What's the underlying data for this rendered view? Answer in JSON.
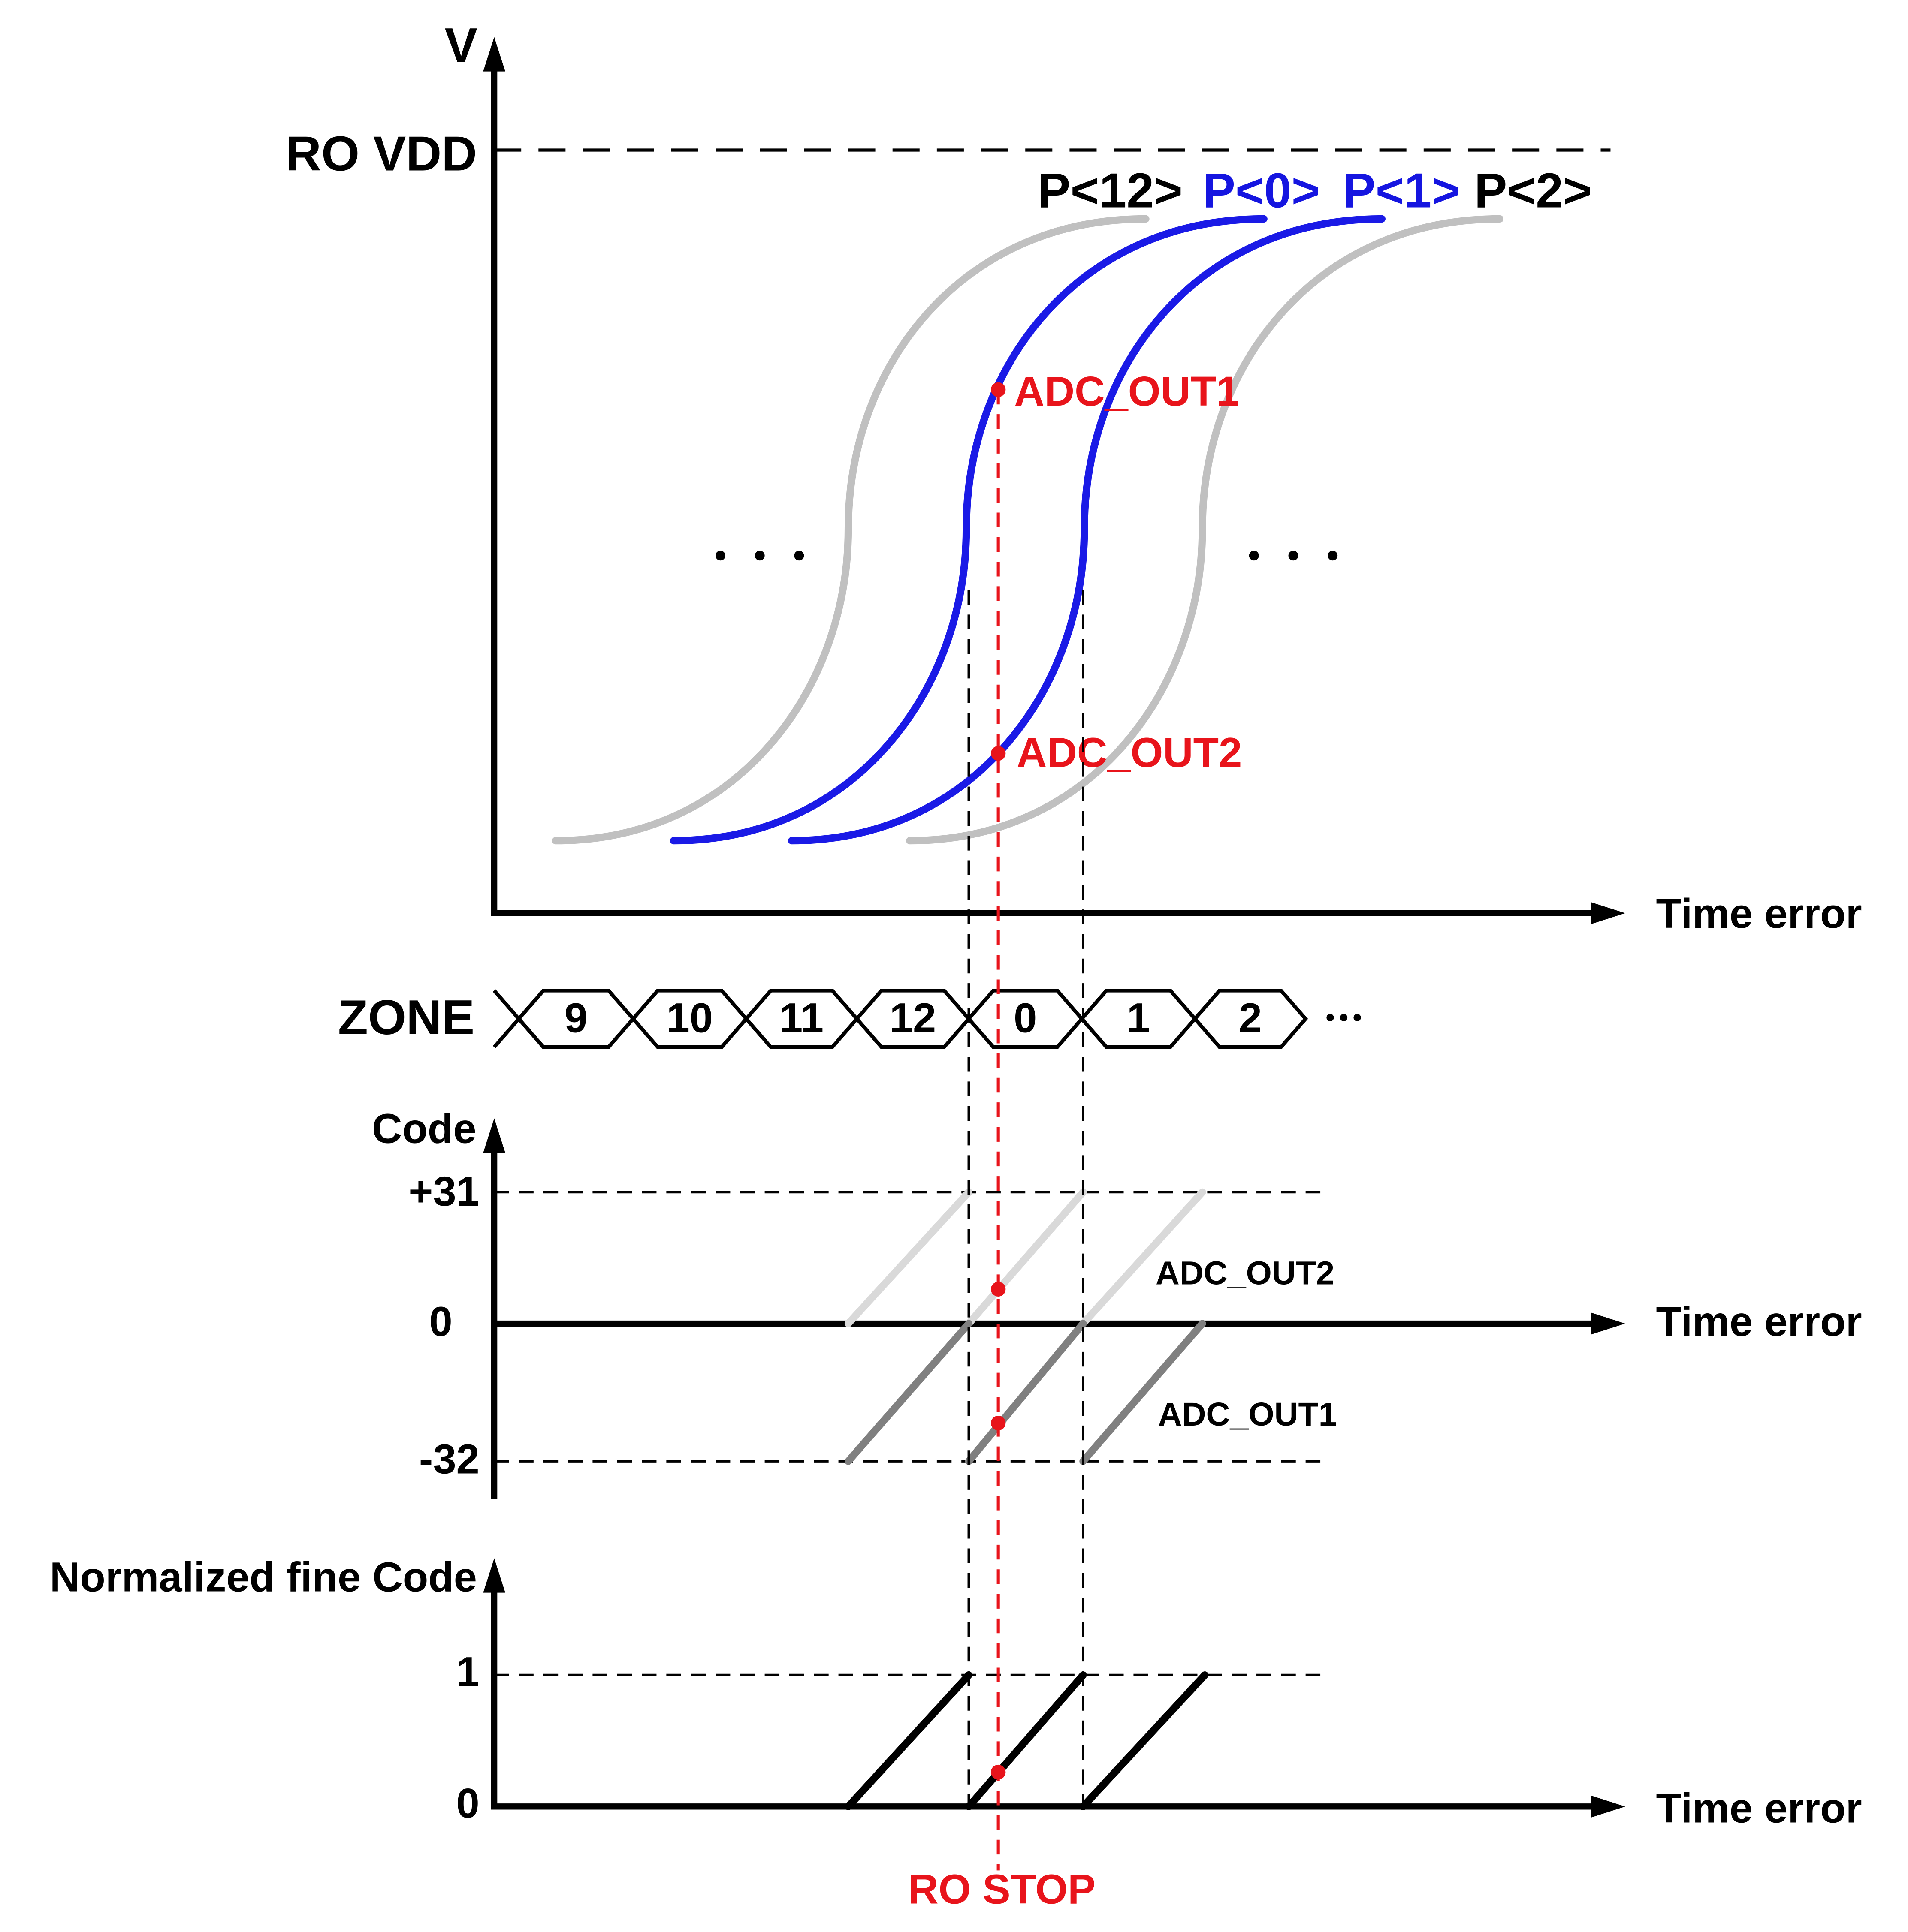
{
  "plot1": {
    "y_label": "V",
    "level_label": "RO VDD",
    "x_label": "Time error",
    "phases": [
      "P<12>",
      "P<0>",
      "P<1>",
      "P<2>"
    ],
    "points": [
      "ADC_OUT1",
      "ADC_OUT2"
    ]
  },
  "zone": {
    "label": "ZONE",
    "cells": [
      "9",
      "10",
      "11",
      "12",
      "0",
      "1",
      "2"
    ]
  },
  "plot2": {
    "y_label": "Code",
    "ticks": [
      "+31",
      "0",
      "-32"
    ],
    "x_label": "Time error",
    "annotations": [
      "ADC_OUT2",
      "ADC_OUT1"
    ]
  },
  "plot3": {
    "y_label": "Normalized fine Code",
    "ticks": [
      "1",
      "0"
    ],
    "x_label": "Time error"
  },
  "marker_label": "RO STOP"
}
